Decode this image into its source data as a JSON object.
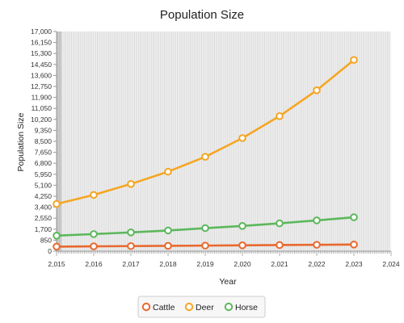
{
  "chart_data": {
    "type": "line",
    "title": "Population Size",
    "xlabel": "Year",
    "ylabel": "Population Size",
    "x": [
      2015,
      2016,
      2017,
      2018,
      2019,
      2020,
      2021,
      2022,
      2023
    ],
    "xlim": [
      2015,
      2024
    ],
    "ylim": [
      0,
      17000
    ],
    "x_ticks": [
      2015,
      2016,
      2017,
      2018,
      2019,
      2020,
      2021,
      2022,
      2023,
      2024
    ],
    "x_tick_labels": [
      "2,015",
      "2,016",
      "2,017",
      "2,018",
      "2,019",
      "2,020",
      "2,021",
      "2,022",
      "2,023",
      "2,024"
    ],
    "y_ticks": [
      0,
      850,
      1700,
      2550,
      3400,
      4250,
      5100,
      5950,
      6800,
      7650,
      8500,
      9350,
      10200,
      11050,
      11900,
      12750,
      13600,
      14450,
      15300,
      16150,
      17000
    ],
    "y_tick_labels": [
      "0",
      "850",
      "1,700",
      "2,550",
      "3,400",
      "4,250",
      "5,100",
      "5,950",
      "6,800",
      "7,650",
      "8,500",
      "9,350",
      "10,200",
      "11,050",
      "11,900",
      "12,750",
      "13,600",
      "14,450",
      "15,300",
      "16,150",
      "17,000"
    ],
    "grid": true,
    "legend_position": "bottom",
    "series": [
      {
        "name": "Cattle",
        "color": "#e8692e",
        "values": [
          350,
          370,
          390,
          410,
          430,
          450,
          470,
          490,
          510
        ]
      },
      {
        "name": "Deer",
        "color": "#f5a623",
        "values": [
          3650,
          4350,
          5200,
          6150,
          7300,
          8750,
          10450,
          12450,
          14800
        ]
      },
      {
        "name": "Horse",
        "color": "#5cb85c",
        "values": [
          1200,
          1320,
          1450,
          1600,
          1780,
          1950,
          2150,
          2380,
          2620
        ]
      }
    ]
  }
}
